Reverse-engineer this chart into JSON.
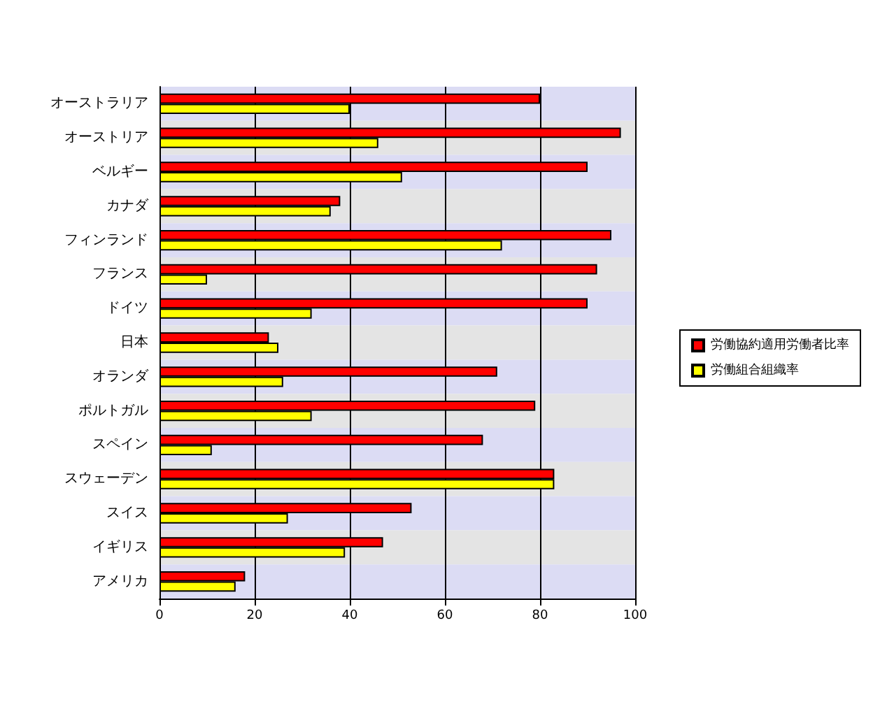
{
  "chart_data": {
    "type": "bar",
    "orientation": "horizontal",
    "categories": [
      "オーストラリア",
      "オーストリア",
      "ベルギー",
      "カナダ",
      "フィンランド",
      "フランス",
      "ドイツ",
      "日本",
      "オランダ",
      "ポルトガル",
      "スペイン",
      "スウェーデン",
      "スイス",
      "イギリス",
      "アメリカ"
    ],
    "series": [
      {
        "name": "労働協約適用労働者比率",
        "color": "#ff0000",
        "values": [
          80,
          97,
          90,
          38,
          95,
          92,
          90,
          23,
          71,
          79,
          68,
          83,
          53,
          47,
          18
        ]
      },
      {
        "name": "労働組合組織率",
        "color": "#ffff00",
        "values": [
          40,
          46,
          51,
          36,
          72,
          10,
          32,
          25,
          26,
          32,
          11,
          83,
          27,
          39,
          16
        ]
      }
    ],
    "xlim": [
      0,
      100
    ],
    "xticks": [
      0,
      20,
      40,
      60,
      80,
      100
    ],
    "grid": "x",
    "legend": "right"
  }
}
